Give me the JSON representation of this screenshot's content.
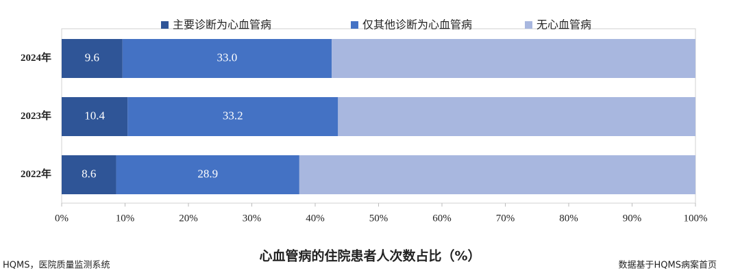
{
  "chart_data": {
    "type": "stacked_barh",
    "xlabel": "心血管病的住院患者人次数占比（%）",
    "footnotes": [
      "HQMS，医院质量监测系统",
      "数据基于HQMS病案首页"
    ],
    "categories": [
      "2024年",
      "2023年",
      "2022年"
    ],
    "series": [
      {
        "name": "主要诊断为心血管病",
        "color": "#2f5597",
        "values": [
          9.6,
          10.4,
          8.6
        ],
        "value_labels": [
          "9.6",
          "10.4",
          "8.6"
        ]
      },
      {
        "name": "仅其他诊断为心血管病",
        "color": "#4472c4",
        "values": [
          33.0,
          33.2,
          28.9
        ],
        "value_labels": [
          "33.0",
          "33.2",
          "28.9"
        ]
      },
      {
        "name": "无心血管病",
        "color": "#a8b7df",
        "values": [
          57.4,
          56.4,
          62.5
        ]
      }
    ],
    "xlim": [
      0,
      100
    ],
    "xticks": [
      {
        "value": 0,
        "label": "0%"
      },
      {
        "value": 10,
        "label": "10%"
      },
      {
        "value": 20,
        "label": "20%"
      },
      {
        "value": 30,
        "label": "30%"
      },
      {
        "value": 40,
        "label": "40%"
      },
      {
        "value": 50,
        "label": "50%"
      },
      {
        "value": 60,
        "label": "60%"
      },
      {
        "value": 70,
        "label": "70%"
      },
      {
        "value": 80,
        "label": "80%"
      },
      {
        "value": 90,
        "label": "90%"
      },
      {
        "value": 100,
        "label": "100%"
      }
    ],
    "legend": "top"
  }
}
